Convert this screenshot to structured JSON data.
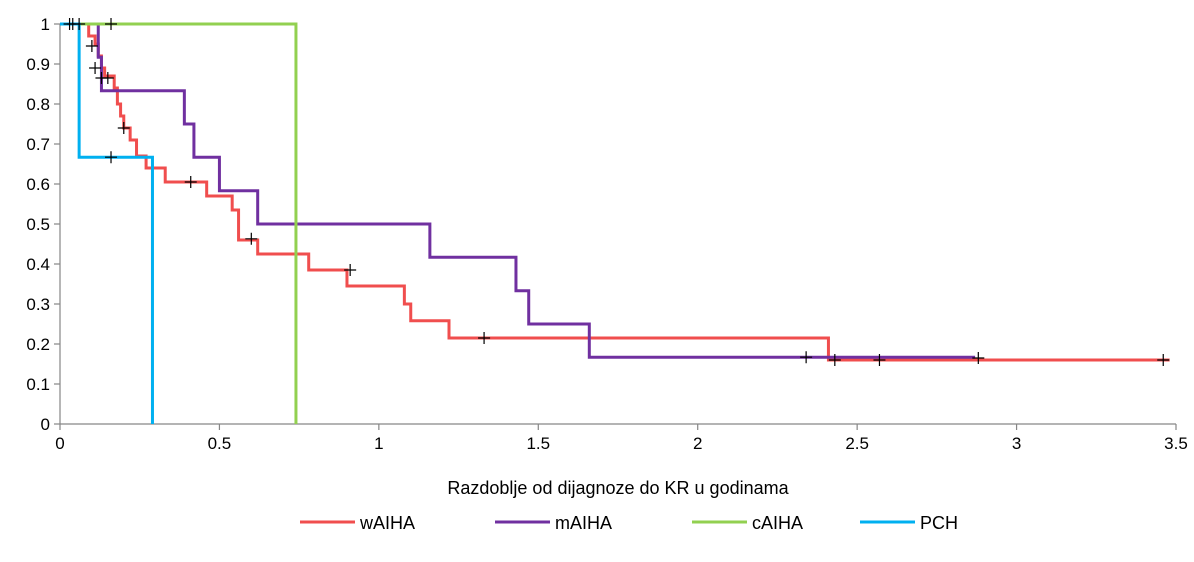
{
  "chart_data": {
    "type": "line",
    "step": true,
    "xlabel": "Razdoblje od dijagnoze do KR u godinama",
    "ylabel": "",
    "xlim": [
      0,
      3.5
    ],
    "ylim": [
      0,
      1
    ],
    "x_ticks": [
      "0",
      "0.5",
      "1",
      "1.5",
      "2",
      "2.5",
      "3",
      "3.5"
    ],
    "y_ticks": [
      "0",
      "0.1",
      "0.2",
      "0.3",
      "0.4",
      "0.5",
      "0.6",
      "0.7",
      "0.8",
      "0.9",
      "1"
    ],
    "grid": "none",
    "legend_position": "bottom",
    "series": [
      {
        "name": "wAIHA",
        "color": "#f04e4e",
        "steps": [
          [
            0.0,
            1.0
          ],
          [
            0.09,
            0.97
          ],
          [
            0.11,
            0.95
          ],
          [
            0.12,
            0.92
          ],
          [
            0.13,
            0.89
          ],
          [
            0.14,
            0.87
          ],
          [
            0.17,
            0.84
          ],
          [
            0.18,
            0.8
          ],
          [
            0.19,
            0.77
          ],
          [
            0.2,
            0.74
          ],
          [
            0.22,
            0.71
          ],
          [
            0.24,
            0.67
          ],
          [
            0.27,
            0.64
          ],
          [
            0.33,
            0.605
          ],
          [
            0.46,
            0.57
          ],
          [
            0.54,
            0.535
          ],
          [
            0.56,
            0.46
          ],
          [
            0.62,
            0.425
          ],
          [
            0.78,
            0.385
          ],
          [
            0.9,
            0.345
          ],
          [
            1.08,
            0.3
          ],
          [
            1.1,
            0.258
          ],
          [
            1.22,
            0.215
          ],
          [
            2.41,
            0.16
          ],
          [
            3.48,
            0.16
          ]
        ],
        "censored": [
          [
            0.03,
            1.0
          ],
          [
            0.04,
            1.0
          ],
          [
            0.1,
            0.945
          ],
          [
            0.11,
            0.89
          ],
          [
            0.13,
            0.865
          ],
          [
            0.15,
            0.865
          ],
          [
            0.2,
            0.74
          ],
          [
            0.41,
            0.605
          ],
          [
            0.6,
            0.463
          ],
          [
            0.91,
            0.385
          ],
          [
            1.33,
            0.215
          ],
          [
            2.43,
            0.16
          ],
          [
            2.57,
            0.16
          ],
          [
            2.88,
            0.165
          ],
          [
            3.46,
            0.16
          ]
        ]
      },
      {
        "name": "mAIHA",
        "color": "#7030a0",
        "steps": [
          [
            0.0,
            1.0
          ],
          [
            0.12,
            0.917
          ],
          [
            0.13,
            0.833
          ],
          [
            0.39,
            0.75
          ],
          [
            0.42,
            0.667
          ],
          [
            0.5,
            0.583
          ],
          [
            0.62,
            0.5
          ],
          [
            1.16,
            0.417
          ],
          [
            1.43,
            0.333
          ],
          [
            1.47,
            0.25
          ],
          [
            1.66,
            0.167
          ],
          [
            2.87,
            0.167
          ]
        ],
        "censored": [
          [
            2.34,
            0.167
          ]
        ]
      },
      {
        "name": "cAIHA",
        "color": "#92d050",
        "steps": [
          [
            0.0,
            1.0
          ],
          [
            0.74,
            0.0
          ]
        ],
        "censored": [
          [
            0.06,
            1.0
          ],
          [
            0.16,
            1.0
          ]
        ]
      },
      {
        "name": "PCH",
        "color": "#00b0f0",
        "steps": [
          [
            0.0,
            1.0
          ],
          [
            0.06,
            0.667
          ],
          [
            0.29,
            0.0
          ]
        ],
        "censored": [
          [
            0.16,
            0.667
          ]
        ]
      }
    ]
  }
}
